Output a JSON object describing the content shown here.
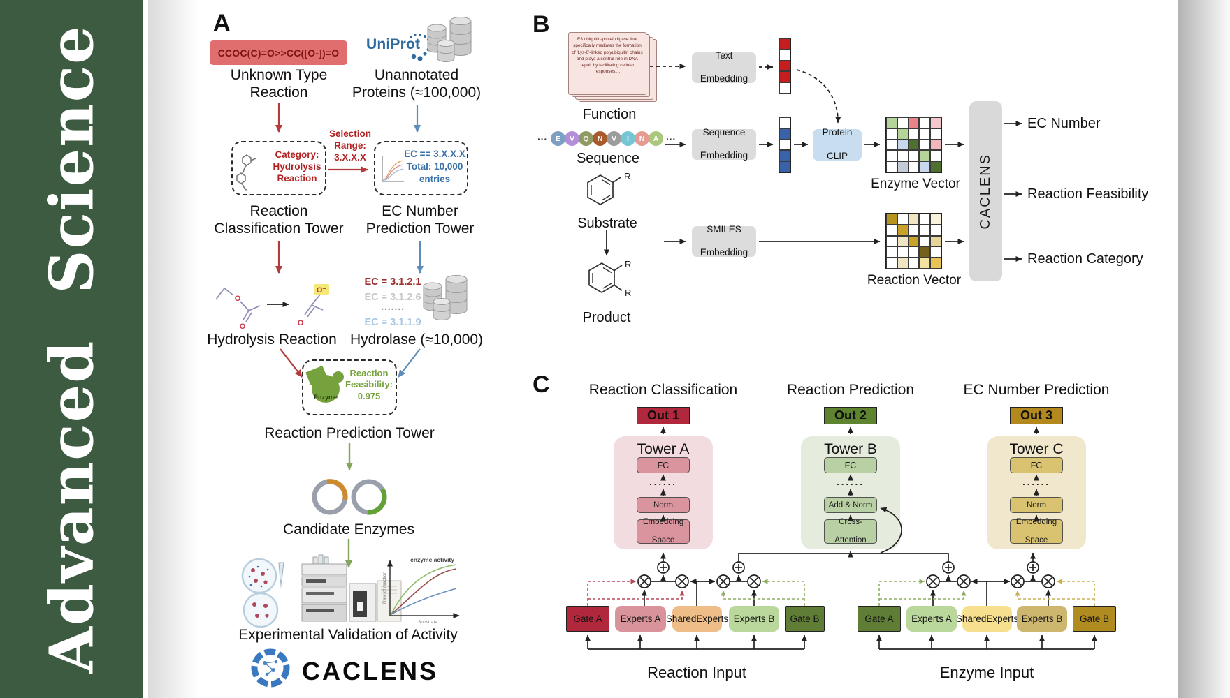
{
  "sidebar": {
    "journal": "Advanced Science",
    "bg_color": "#3d5b41"
  },
  "panel_a": {
    "label": "A",
    "smiles_box": "CCOC(C)=O>>CC([O-])=O",
    "unknown_reaction": [
      "Unknown Type",
      "Reaction"
    ],
    "uniprot_logo": "UniProt",
    "unannotated": [
      "Unannotated",
      "Proteins (≈100,000)"
    ],
    "category_box": [
      "Category:",
      "Hydrolysis",
      "Reaction"
    ],
    "selection": [
      "Selection",
      "Range:",
      "3.X.X.X"
    ],
    "ec_box": [
      "EC == 3.X.X.X",
      "Total: 10,000",
      "entries"
    ],
    "classification_tower": [
      "Reaction",
      "Classification Tower"
    ],
    "ec_tower": [
      "EC Number",
      "Prediction Tower"
    ],
    "hydrolysis_reaction": "Hydrolysis Reaction",
    "ec_list": [
      {
        "text": "EC = 3.1.2.1",
        "color": "#a03030"
      },
      {
        "text": "EC = 3.1.2.6",
        "color": "#c8c8c8"
      },
      {
        "text": "·······",
        "color": "#9a9a9a"
      },
      {
        "text": "EC = 3.1.1.9",
        "color": "#a9c7e4"
      }
    ],
    "hydrolase": "Hydrolase (≈10,000)",
    "enzyme_blob": "Enzyme",
    "feasibility": [
      "Reaction",
      "Feasibility:",
      "0.975"
    ],
    "prediction_tower": "Reaction Prediction Tower",
    "candidate_enzymes": "Candidate Enzymes",
    "activity_plot": {
      "label": "enzyme activity",
      "ylabel": "Rate of reaction",
      "xlabel": "Substrate"
    },
    "validation": "Experimental Validation of Activity",
    "logo_text": "CACLENS",
    "molecule_atoms": {
      "o": "O",
      "o_minus": "O⁻"
    }
  },
  "panel_b": {
    "label": "B",
    "function_card_text": "E3 ubiquitin-protein ligase that specifically mediates the formation of 'Lys-6'-linked polyubiquitin chains and plays a central role in DNA repair by facilitating cellular responses....",
    "function_label": "Function",
    "ellipsis": "···",
    "sequence_circles": [
      {
        "letter": "E",
        "color": "#7e9fc4"
      },
      {
        "letter": "V",
        "color": "#b48fd9"
      },
      {
        "letter": "Q",
        "color": "#8f9a63"
      },
      {
        "letter": "N",
        "color": "#a85a2c"
      },
      {
        "letter": "V",
        "color": "#9c9c9c"
      },
      {
        "letter": "I",
        "color": "#74c6d4"
      },
      {
        "letter": "N",
        "color": "#e49b94"
      },
      {
        "letter": "A",
        "color": "#a9c87c"
      }
    ],
    "sequence_label": "Sequence",
    "substrate_label": "Substrate",
    "product_label": "Product",
    "r_group": "R",
    "text_embedding": [
      "Text",
      "Embedding"
    ],
    "sequence_embedding": [
      "Sequence",
      "Embedding"
    ],
    "smiles_embedding": [
      "SMILES",
      "Embedding"
    ],
    "protein_clip": [
      "Protein",
      "CLIP"
    ],
    "text_vector_cells": [
      "#c41e1e",
      "#ffffff",
      "#c41e1e",
      "#c41e1e",
      "#ffffff"
    ],
    "seq_vector_cells": [
      "#ffffff",
      "#3a62a8",
      "#ffffff",
      "#3a62a8",
      "#3a62a8"
    ],
    "enzyme_vector": {
      "label": "Enzyme Vector",
      "cells": [
        [
          "#b5d49a",
          "#ffffff",
          "#e8838a",
          "#ffffff",
          "#f2c8cc"
        ],
        [
          "#ffffff",
          "#b5d49a",
          "#ffffff",
          "#ffffff",
          "#ffffff"
        ],
        [
          "#ffffff",
          "#c7d8ec",
          "#4f7030",
          "#ffffff",
          "#f0b8bc"
        ],
        [
          "#ffffff",
          "#ffffff",
          "#ffffff",
          "#b5d49a",
          "#ffffff"
        ],
        [
          "#ffffff",
          "#c3ccd6",
          "#ffffff",
          "#c7d8ec",
          "#4f7030"
        ]
      ]
    },
    "reaction_vector": {
      "label": "Reaction Vector",
      "cells": [
        [
          "#b8941f",
          "#ffffff",
          "#f0e6c3",
          "#ffffff",
          "#f8f2dd"
        ],
        [
          "#ffffff",
          "#c9a22b",
          "#ffffff",
          "#ffffff",
          "#ffffff"
        ],
        [
          "#ffffff",
          "#f0e6c3",
          "#c9a22b",
          "#ffffff",
          "#e6d49a"
        ],
        [
          "#ffffff",
          "#ffffff",
          "#ffffff",
          "#74611c",
          "#ffffff"
        ],
        [
          "#ffffff",
          "#f0e6c3",
          "#ffffff",
          "#f2e3a0",
          "#e8c355"
        ]
      ]
    },
    "caclens_bar": "CACLENS",
    "outputs": [
      "EC Number",
      "Reaction Feasibility",
      "Reaction Category"
    ]
  },
  "panel_c": {
    "label": "C",
    "columns": [
      {
        "header": "Reaction Classification",
        "out_label": "Out 1",
        "out_color": "#b1283c",
        "tower_label": "Tower A",
        "tower_color": "#f3dce0",
        "block_color": "#d9949e",
        "blocks": {
          "fc": "FC",
          "dots": "......",
          "mid": "Norm",
          "bottom": [
            "Embedding",
            "Space"
          ]
        }
      },
      {
        "header": "Reaction Prediction",
        "out_label": "Out 2",
        "out_color": "#5f8430",
        "tower_label": "Tower B",
        "tower_color": "#e5ecde",
        "block_color": "#b9cfa4",
        "blocks": {
          "fc": "FC",
          "dots": "......",
          "mid": "Add & Norm",
          "bottom": [
            "Cross-",
            "Attention"
          ]
        }
      },
      {
        "header": "EC Number Prediction",
        "out_label": "Out 3",
        "out_color": "#b3881c",
        "tower_label": "Tower C",
        "tower_color": "#f0e7cc",
        "block_color": "#d9c270",
        "blocks": {
          "fc": "FC",
          "dots": "......",
          "mid": "Norm",
          "bottom": [
            "Embedding",
            "Space"
          ]
        }
      }
    ],
    "moe_groups": [
      {
        "input_label": "Reaction Input",
        "boxes": [
          {
            "label": "Gate A",
            "color": "#b1283c"
          },
          {
            "label": "Experts A",
            "color": "#d9949b"
          },
          {
            "lines": [
              "Shared",
              "Experts"
            ],
            "color": "#eebd88"
          },
          {
            "label": "Experts B",
            "color": "#bad79c"
          },
          {
            "label": "Gate B",
            "color": "#5f7d35"
          }
        ]
      },
      {
        "input_label": "Enzyme Input",
        "boxes": [
          {
            "label": "Gate A",
            "color": "#5f7d35"
          },
          {
            "label": "Experts A",
            "color": "#bad79c"
          },
          {
            "lines": [
              "Shared",
              "Experts"
            ],
            "color": "#f6e08f"
          },
          {
            "label": "Experts B",
            "color": "#cdb76f"
          },
          {
            "label": "Gate B",
            "color": "#b08c20"
          }
        ]
      }
    ]
  }
}
